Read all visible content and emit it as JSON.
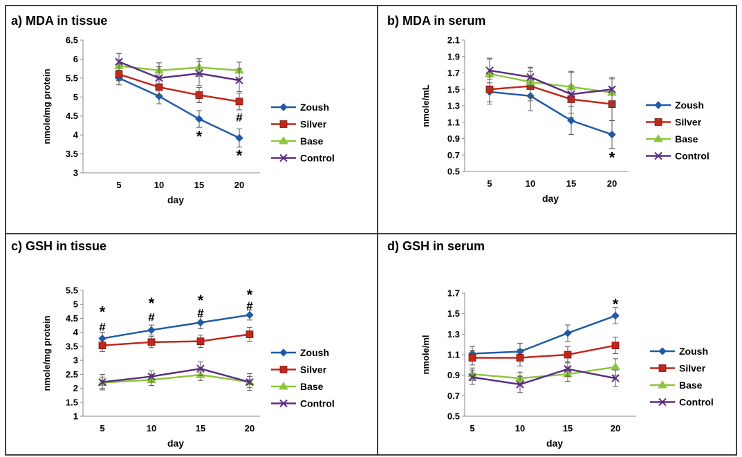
{
  "chart_data": [
    {
      "type": "line",
      "title": "a) MDA in tissue",
      "xlabel": "day",
      "ylabel": "nmole/mg protein",
      "categories": [
        "5",
        "10",
        "15",
        "20"
      ],
      "ylim": [
        3,
        6.5
      ],
      "yticks": [
        "3",
        "3.5",
        "4",
        "4.5",
        "5",
        "5.5",
        "6",
        "6.5"
      ],
      "grid": false,
      "legend": "right",
      "series": [
        {
          "name": "Zoush",
          "values": [
            5.5,
            5.02,
            4.42,
            3.92
          ],
          "errors": [
            0.18,
            0.2,
            0.22,
            0.24
          ]
        },
        {
          "name": "Silver",
          "values": [
            5.6,
            5.26,
            5.05,
            4.88
          ],
          "errors": [
            0.17,
            0.2,
            0.2,
            0.22
          ]
        },
        {
          "name": "Base",
          "values": [
            5.82,
            5.7,
            5.78,
            5.7
          ],
          "errors": [
            0.15,
            0.2,
            0.23,
            0.22
          ]
        },
        {
          "name": "Control",
          "values": [
            5.93,
            5.5,
            5.62,
            5.44
          ],
          "errors": [
            0.22,
            0.3,
            0.32,
            0.3
          ]
        }
      ],
      "annotations": [
        {
          "text": "*",
          "x": "15",
          "y": 4.0
        },
        {
          "text": "#",
          "x": "20",
          "y": 4.47
        },
        {
          "text": "*",
          "x": "20",
          "y": 3.5
        }
      ]
    },
    {
      "type": "line",
      "title": "b) MDA in serum",
      "xlabel": "day",
      "ylabel": "nmole/mL",
      "categories": [
        "5",
        "10",
        "15",
        "20"
      ],
      "ylim": [
        0.5,
        2.1
      ],
      "yticks": [
        "0.5",
        "0.7",
        "0.9",
        "1.1",
        "1.3",
        "1.5",
        "1.7",
        "1.9",
        "2.1"
      ],
      "grid": false,
      "legend": "right",
      "series": [
        {
          "name": "Zoush",
          "values": [
            1.47,
            1.42,
            1.12,
            0.95
          ],
          "errors": [
            0.15,
            0.18,
            0.17,
            0.17
          ]
        },
        {
          "name": "Silver",
          "values": [
            1.5,
            1.54,
            1.38,
            1.32
          ],
          "errors": [
            0.15,
            0.18,
            0.17,
            0.2
          ]
        },
        {
          "name": "Base",
          "values": [
            1.69,
            1.59,
            1.53,
            1.46
          ],
          "errors": [
            0.18,
            0.17,
            0.18,
            0.17
          ]
        },
        {
          "name": "Control",
          "values": [
            1.73,
            1.65,
            1.44,
            1.5
          ],
          "errors": [
            0.15,
            0.12,
            0.28,
            0.15
          ]
        }
      ],
      "annotations": [
        {
          "text": "*",
          "x": "20",
          "y": 0.69
        }
      ]
    },
    {
      "type": "line",
      "title": "c) GSH in tissue",
      "xlabel": "day",
      "ylabel": "nmole/mg protein",
      "categories": [
        "5",
        "10",
        "15",
        "20"
      ],
      "ylim": [
        1,
        5.5
      ],
      "yticks": [
        "1",
        "1.5",
        "2",
        "2.5",
        "3",
        "3.5",
        "4",
        "4.5",
        "5",
        "5.5"
      ],
      "grid": false,
      "legend": "right",
      "series": [
        {
          "name": "Zoush",
          "values": [
            3.78,
            4.08,
            4.35,
            4.62
          ],
          "errors": [
            0.22,
            0.18,
            0.22,
            0.18
          ]
        },
        {
          "name": "Silver",
          "values": [
            3.53,
            3.65,
            3.68,
            3.93
          ],
          "errors": [
            0.22,
            0.2,
            0.22,
            0.25
          ]
        },
        {
          "name": "Base",
          "values": [
            2.2,
            2.3,
            2.48,
            2.22
          ],
          "errors": [
            0.2,
            0.2,
            0.2,
            0.2
          ]
        },
        {
          "name": "Control",
          "values": [
            2.22,
            2.42,
            2.7,
            2.22
          ],
          "errors": [
            0.28,
            0.2,
            0.25,
            0.3
          ]
        }
      ],
      "annotations": [
        {
          "text": "*",
          "x": "5",
          "y": 4.8
        },
        {
          "text": "#",
          "x": "5",
          "y": 4.2
        },
        {
          "text": "*",
          "x": "10",
          "y": 5.1
        },
        {
          "text": "#",
          "x": "10",
          "y": 4.55
        },
        {
          "text": "*",
          "x": "15",
          "y": 5.2
        },
        {
          "text": "#",
          "x": "15",
          "y": 4.7
        },
        {
          "text": "*",
          "x": "20",
          "y": 5.4
        },
        {
          "text": "#",
          "x": "20",
          "y": 4.95
        }
      ]
    },
    {
      "type": "line",
      "title": "d) GSH in serum",
      "xlabel": "day",
      "ylabel": "nmole/ml",
      "categories": [
        "5",
        "10",
        "15",
        "20"
      ],
      "ylim": [
        0.5,
        1.7
      ],
      "yticks": [
        "0.5",
        "0.7",
        "0.9",
        "1.1",
        "1.3",
        "1.5",
        "1.7"
      ],
      "grid": false,
      "legend": "right",
      "series": [
        {
          "name": "Zoush",
          "values": [
            1.11,
            1.13,
            1.31,
            1.48
          ],
          "errors": [
            0.07,
            0.08,
            0.08,
            0.08
          ]
        },
        {
          "name": "Silver",
          "values": [
            1.07,
            1.07,
            1.1,
            1.19
          ],
          "errors": [
            0.07,
            0.08,
            0.08,
            0.08
          ]
        },
        {
          "name": "Base",
          "values": [
            0.91,
            0.87,
            0.91,
            0.98
          ],
          "errors": [
            0.06,
            0.06,
            0.07,
            0.08
          ]
        },
        {
          "name": "Control",
          "values": [
            0.88,
            0.81,
            0.96,
            0.87
          ],
          "errors": [
            0.07,
            0.08,
            0.07,
            0.08
          ]
        }
      ],
      "annotations": [
        {
          "text": "*",
          "x": "20",
          "y": 1.61
        }
      ]
    }
  ],
  "colors": {
    "Zoush": "#1f5aa6",
    "Silver": "#c0281c",
    "Base": "#8cc63e",
    "Control": "#5a2d82"
  },
  "markers": {
    "Zoush": "diamond",
    "Silver": "square",
    "Base": "triangle",
    "Control": "x"
  }
}
